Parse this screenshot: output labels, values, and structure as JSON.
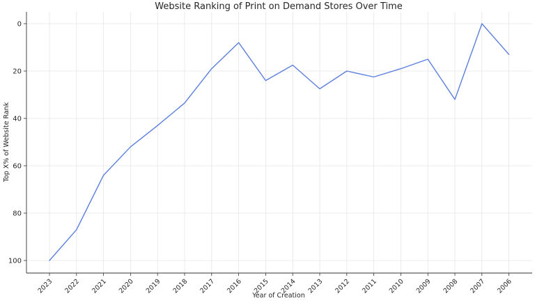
{
  "chart_data": {
    "type": "line",
    "title": "Website Ranking of Print on Demand Stores Over Time",
    "xlabel": "Year of Creation",
    "ylabel": "Top X% of Website Rank",
    "categories": [
      "2023",
      "2022",
      "2021",
      "2020",
      "2019",
      "2018",
      "2017",
      "2016",
      "2015",
      "2014",
      "2013",
      "2012",
      "2011",
      "2010",
      "2009",
      "2008",
      "2007",
      "2006"
    ],
    "series": [
      {
        "values": [
          100,
          87,
          64,
          52,
          43,
          33.5,
          19,
          8,
          24,
          17.5,
          27.5,
          20,
          22.5,
          19,
          15,
          32,
          0,
          13
        ]
      }
    ],
    "ylim": [
      0,
      100
    ],
    "y_inverted": true,
    "yticks": [
      0,
      20,
      40,
      60,
      80,
      100
    ],
    "grid": true,
    "line_color": "#5b7fde",
    "grid_color": "#e6e6e6"
  }
}
